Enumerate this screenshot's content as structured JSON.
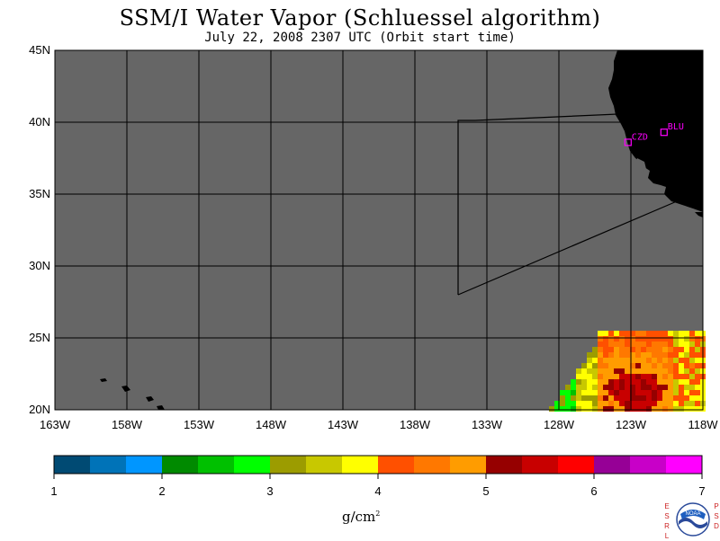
{
  "header": {
    "title": "SSM/I Water Vapor (Schluessel algorithm)",
    "subtitle": "July 22, 2008  2307 UTC  (Orbit start time)"
  },
  "map": {
    "lat_labels": [
      "45N",
      "40N",
      "35N",
      "30N",
      "25N",
      "20N"
    ],
    "lon_labels": [
      "163W",
      "158W",
      "153W",
      "148W",
      "143W",
      "138W",
      "133W",
      "128W",
      "123W",
      "118W"
    ],
    "stations": [
      {
        "label": "CZD",
        "lat": 38.6,
        "lon": -123.2
      },
      {
        "label": "BLU",
        "lat": 39.3,
        "lon": -120.7
      }
    ],
    "colors": {
      "no_data": "#666666",
      "land": "#000000",
      "grid": "#000000",
      "station": "#ff00ff"
    }
  },
  "colorbar": {
    "ticks": [
      "1",
      "2",
      "3",
      "4",
      "5",
      "6",
      "7"
    ],
    "unit_base": "g/cm",
    "unit_exp": "2",
    "colors": [
      "#004a73",
      "#0073b8",
      "#0096ff",
      "#008a00",
      "#00c000",
      "#00ff00",
      "#9c9c00",
      "#c8c800",
      "#ffff00",
      "#ff5000",
      "#ff7800",
      "#ff9c00",
      "#960000",
      "#c80000",
      "#ff0000",
      "#960096",
      "#c800c8",
      "#ff00ff"
    ]
  },
  "footer": {
    "left_letters": [
      "E",
      "S",
      "R",
      "L"
    ],
    "right_letters": [
      "P",
      "S",
      "D"
    ],
    "logo_text": "NOAA"
  }
}
